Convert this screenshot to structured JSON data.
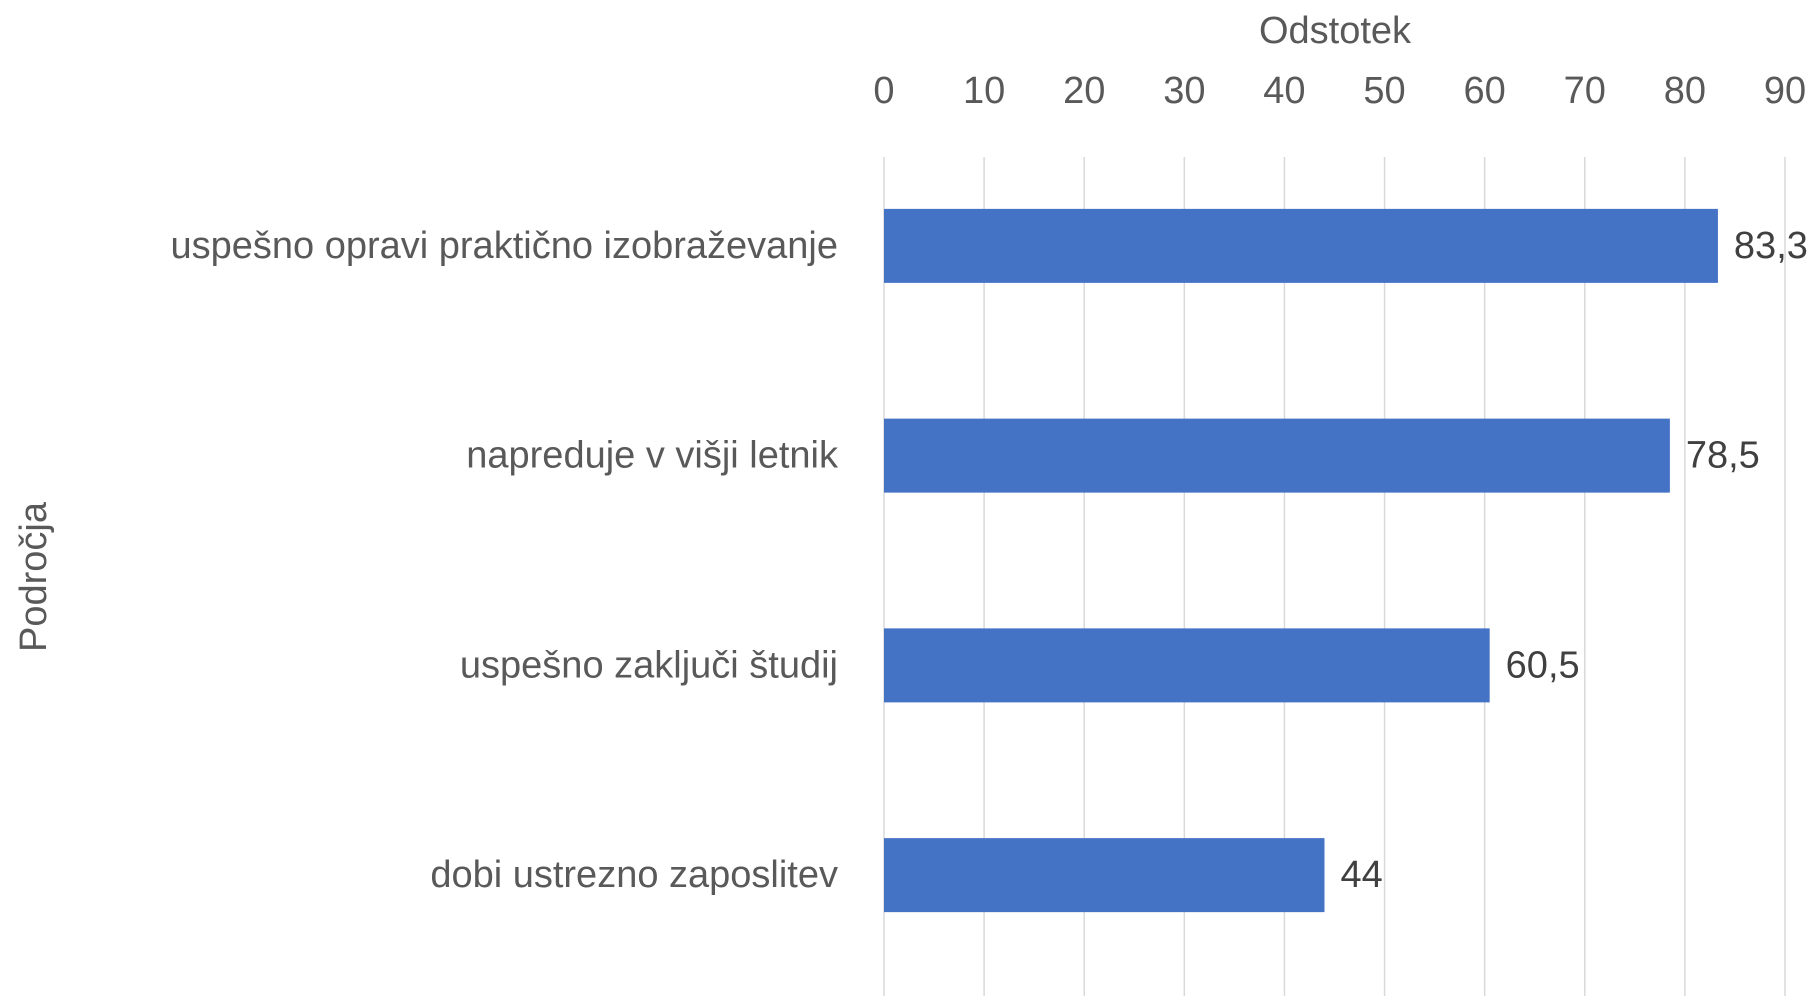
{
  "chart_data": {
    "type": "barh",
    "x_label": "Odstotek",
    "y_label": "Področja",
    "categories": [
      "uspešno opravi praktično izobraževanje",
      "napreduje v višji letnik",
      "uspešno zaključi študij",
      "dobi ustrezno zaposlitev"
    ],
    "values": [
      83.3,
      78.5,
      60.5,
      44
    ],
    "value_labels": [
      "83,3",
      "78,5",
      "60,5",
      "44"
    ],
    "color": "#4472c4",
    "xlim": [
      0,
      90
    ],
    "xticks": [
      0,
      10,
      20,
      30,
      40,
      50,
      60,
      70,
      80,
      90
    ],
    "grid": true
  }
}
